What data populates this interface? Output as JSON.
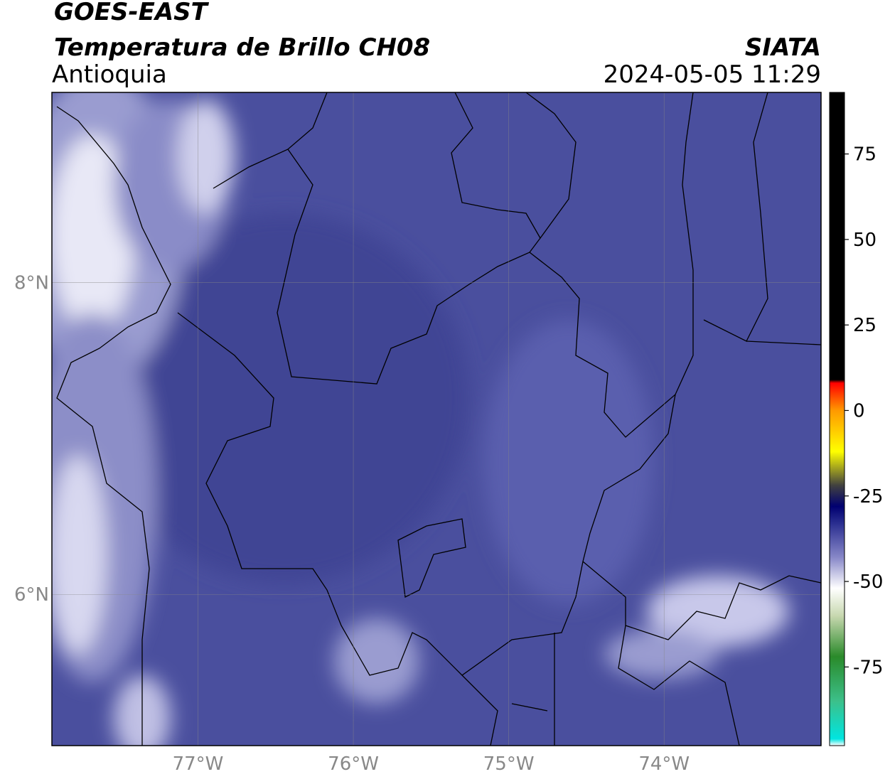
{
  "chart_data": {
    "type": "map",
    "title": "GOES-EAST",
    "subtitle": "Temperatura de Brillo CH08",
    "region": "Antioquia",
    "source": "SIATA",
    "timestamp": "2024-05-05 11:29",
    "xlim": [
      -77.94,
      -72.99
    ],
    "ylim": [
      5.03,
      9.22
    ],
    "xticks": [
      {
        "value": -77,
        "label": "77°W"
      },
      {
        "value": -76,
        "label": "76°W"
      },
      {
        "value": -75,
        "label": "75°W"
      },
      {
        "value": -74,
        "label": "74°W"
      }
    ],
    "yticks": [
      {
        "value": 6,
        "label": "6°N"
      },
      {
        "value": 8,
        "label": "8°N"
      }
    ],
    "grid": true,
    "colorbar": {
      "clim": [
        -98,
        93
      ],
      "ticks": [
        -75,
        -50,
        -25,
        0,
        25,
        50,
        75
      ],
      "stops": [
        {
          "value": -98,
          "color": "#ffffff"
        },
        {
          "value": -96,
          "color": "#00e5e0"
        },
        {
          "value": -85,
          "color": "#3cc08a"
        },
        {
          "value": -72,
          "color": "#2a8a2a"
        },
        {
          "value": -60,
          "color": "#c8d8b0"
        },
        {
          "value": -52,
          "color": "#ffffff"
        },
        {
          "value": -43,
          "color": "#8888c8"
        },
        {
          "value": -33,
          "color": "#2a2e90"
        },
        {
          "value": -28,
          "color": "#000070"
        },
        {
          "value": -22,
          "color": "#404040"
        },
        {
          "value": -12,
          "color": "#ffff00"
        },
        {
          "value": 0,
          "color": "#ff9900"
        },
        {
          "value": 8,
          "color": "#ff0000"
        },
        {
          "value": 9,
          "color": "#000000"
        },
        {
          "value": 93,
          "color": "#000000"
        }
      ]
    }
  }
}
